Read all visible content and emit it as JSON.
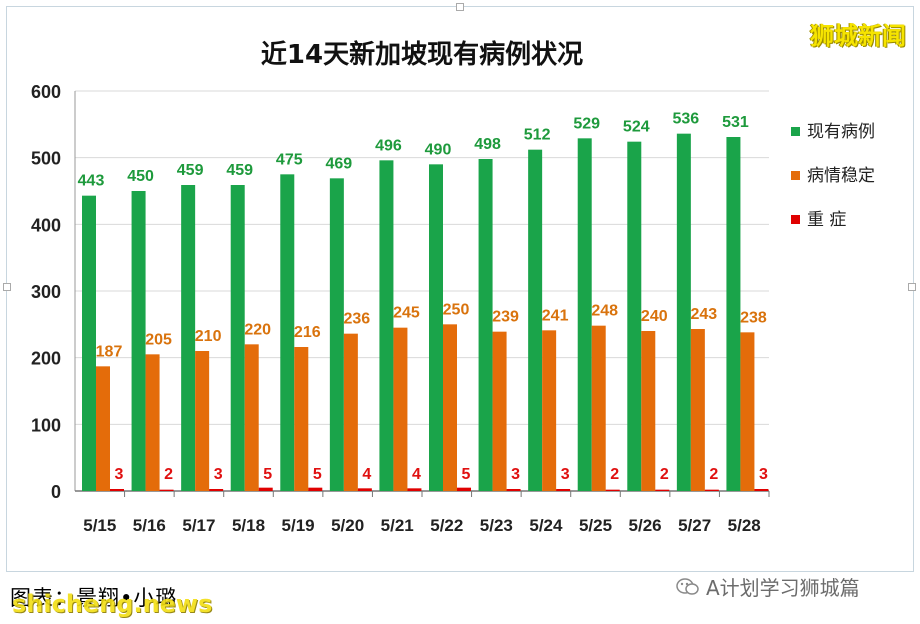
{
  "watermark": "狮城新闻",
  "credit": "图表：景翔•小璐",
  "site": "shicheng.news",
  "account": "A计划学习狮城篇",
  "colors": {
    "active": "#1aa44a",
    "stable": "#e46c0a",
    "critical": "#e00000",
    "green_label": "#1e9a3c",
    "orange_label": "#d9730d",
    "red_label": "#e01010"
  },
  "chart_data": {
    "type": "bar",
    "title": "近14天新加坡现有病例状况",
    "categories": [
      "5/15",
      "5/16",
      "5/17",
      "5/18",
      "5/19",
      "5/20",
      "5/21",
      "5/22",
      "5/23",
      "5/24",
      "5/25",
      "5/26",
      "5/27",
      "5/28"
    ],
    "series": [
      {
        "name": "现有病例",
        "values": [
          443,
          450,
          459,
          459,
          475,
          469,
          496,
          490,
          498,
          512,
          529,
          524,
          536,
          531
        ]
      },
      {
        "name": "病情稳定",
        "values": [
          187,
          205,
          210,
          220,
          216,
          236,
          245,
          250,
          239,
          241,
          248,
          240,
          243,
          238
        ]
      },
      {
        "name": "重 症",
        "values": [
          3,
          2,
          3,
          5,
          5,
          4,
          4,
          5,
          3,
          3,
          2,
          2,
          2,
          3
        ]
      }
    ],
    "ylim": [
      0,
      600
    ],
    "yticks": [
      0,
      100,
      200,
      300,
      400,
      500,
      600
    ],
    "grid": true,
    "legend": "right"
  }
}
